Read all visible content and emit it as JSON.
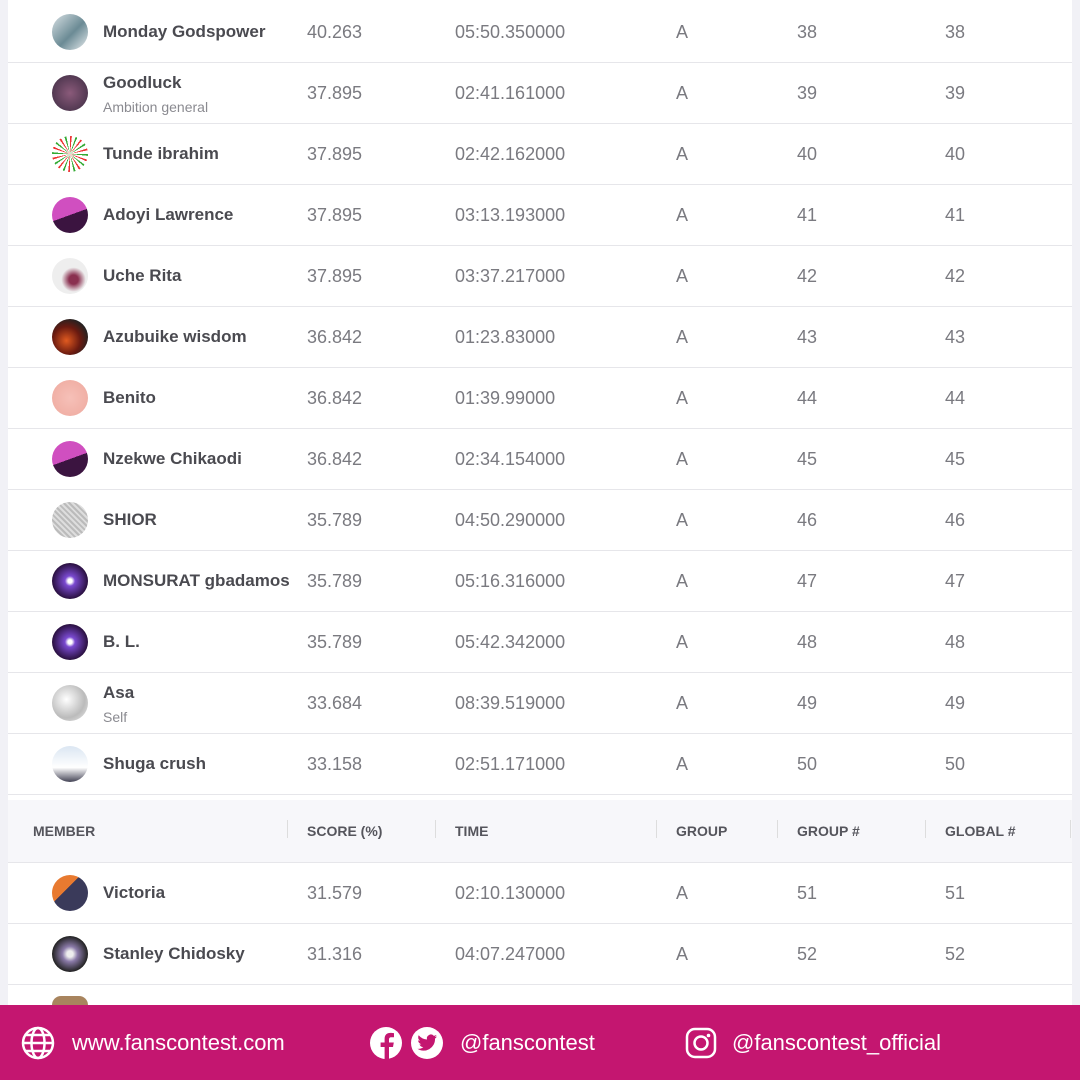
{
  "header": {
    "columns": [
      "MEMBER",
      "SCORE (%)",
      "TIME",
      "GROUP",
      "GROUP #",
      "GLOBAL #"
    ]
  },
  "upper_rows": [
    {
      "name": "Monday Godspower",
      "score": 40.263,
      "time": "05:50.350000",
      "group": "A",
      "group_rank": 38,
      "global_rank": 38
    },
    {
      "name": "Goodluck",
      "note": "Ambition general",
      "score": 37.895,
      "time": "02:41.161000",
      "group": "A",
      "group_rank": 39,
      "global_rank": 39
    },
    {
      "name": "Tunde ibrahim",
      "score": 37.895,
      "time": "02:42.162000",
      "group": "A",
      "group_rank": 40,
      "global_rank": 40
    },
    {
      "name": "Adoyi Lawrence",
      "score": 37.895,
      "time": "03:13.193000",
      "group": "A",
      "group_rank": 41,
      "global_rank": 41
    },
    {
      "name": "Uche Rita",
      "score": 37.895,
      "time": "03:37.217000",
      "group": "A",
      "group_rank": 42,
      "global_rank": 42
    },
    {
      "name": "Azubuike wisdom",
      "score": 36.842,
      "time": "01:23.83000",
      "group": "A",
      "group_rank": 43,
      "global_rank": 43
    },
    {
      "name": "Benito",
      "score": 36.842,
      "time": "01:39.99000",
      "group": "A",
      "group_rank": 44,
      "global_rank": 44
    },
    {
      "name": "Nzekwe Chikaodi",
      "score": 36.842,
      "time": "02:34.154000",
      "group": "A",
      "group_rank": 45,
      "global_rank": 45
    },
    {
      "name": "SHIOR",
      "score": 35.789,
      "time": "04:50.290000",
      "group": "A",
      "group_rank": 46,
      "global_rank": 46
    },
    {
      "name": "MONSURAT gbadamos",
      "score": 35.789,
      "time": "05:16.316000",
      "group": "A",
      "group_rank": 47,
      "global_rank": 47
    },
    {
      "name": "B. L.",
      "score": 35.789,
      "time": "05:42.342000",
      "group": "A",
      "group_rank": 48,
      "global_rank": 48
    },
    {
      "name": "Asa",
      "note": "Self",
      "score": 33.684,
      "time": "08:39.519000",
      "group": "A",
      "group_rank": 49,
      "global_rank": 49
    },
    {
      "name": "Shuga crush",
      "score": 33.158,
      "time": "02:51.171000",
      "group": "A",
      "group_rank": 50,
      "global_rank": 50
    }
  ],
  "lower_rows": [
    {
      "name": "Victoria",
      "score": 31.579,
      "time": "02:10.130000",
      "group": "A",
      "group_rank": 51,
      "global_rank": 51
    },
    {
      "name": "Stanley Chidosky",
      "score": 31.316,
      "time": "04:07.247000",
      "group": "A",
      "group_rank": 52,
      "global_rank": 52
    }
  ],
  "footer": {
    "website": "www.fanscontest.com",
    "social": "@fanscontest",
    "instagram": "@fanscontest_official"
  }
}
